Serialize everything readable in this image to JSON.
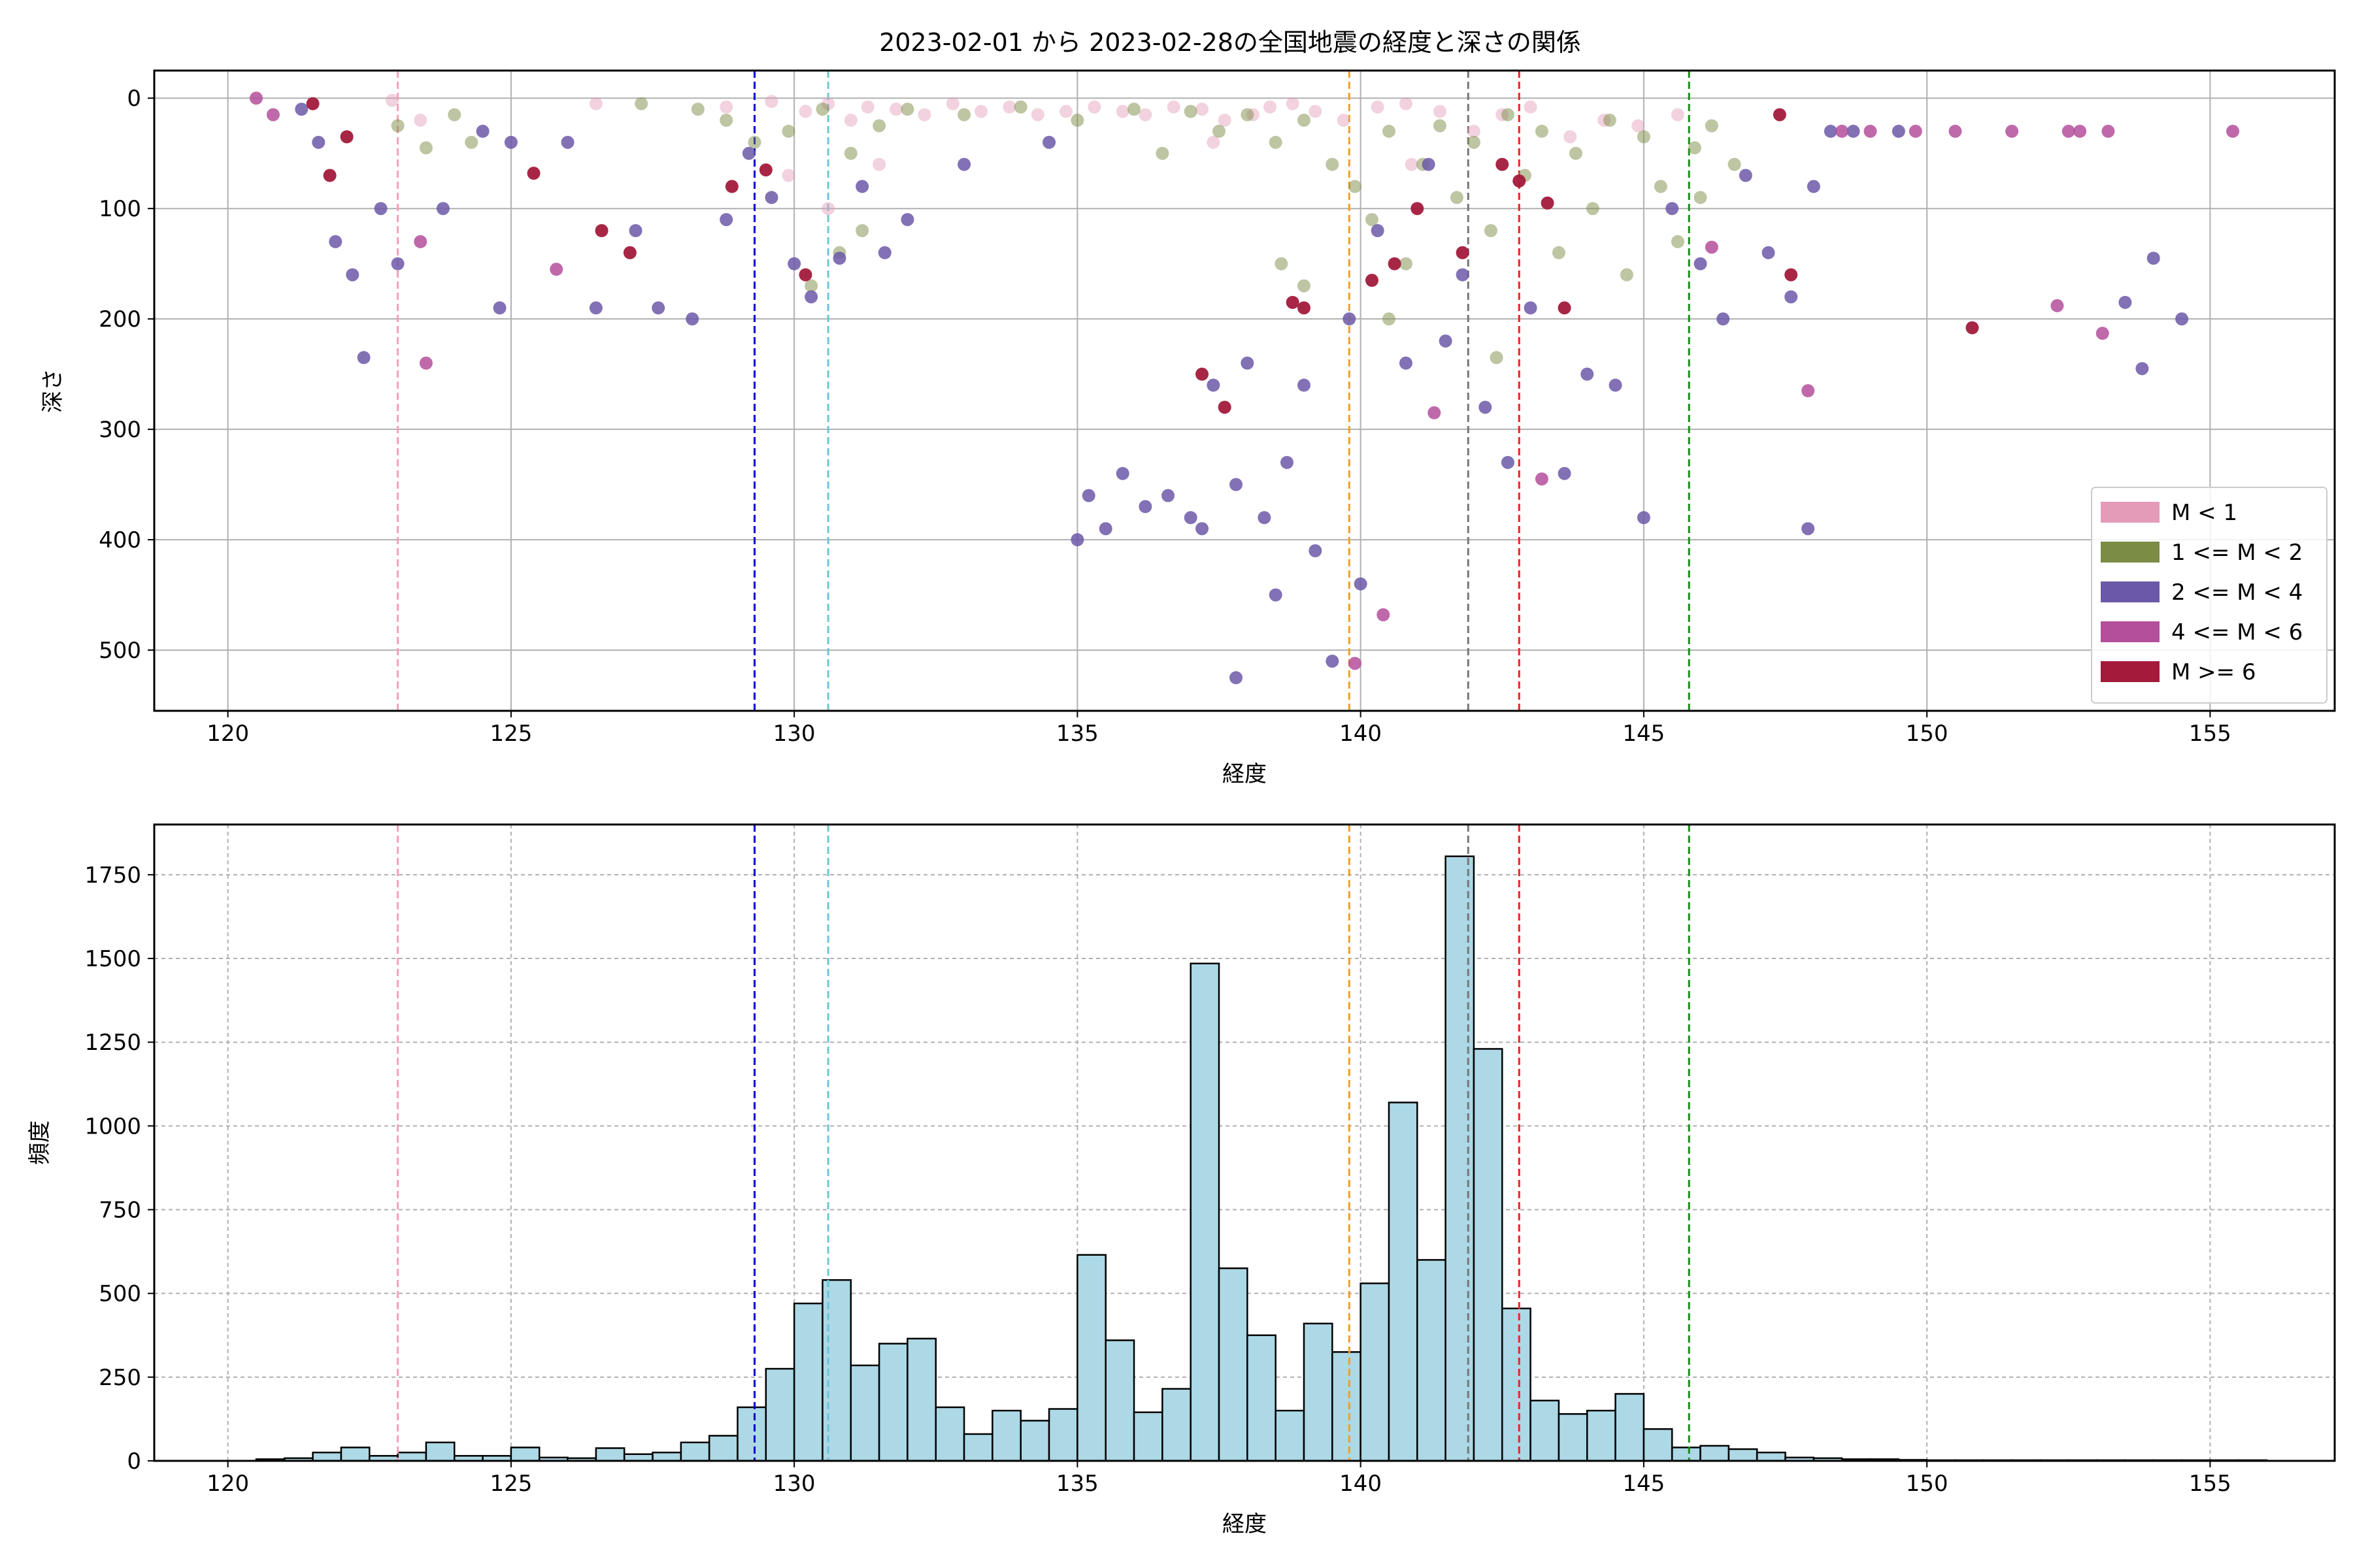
{
  "chart_data": [
    {
      "type": "scatter",
      "title": "2023-02-01 から 2023-02-28の全国地震の経度と深さの関係",
      "xlabel": "経度",
      "ylabel": "深さ",
      "xlim": [
        118.7,
        157.2
      ],
      "ylim": [
        555,
        -25
      ],
      "y_inverted": true,
      "xticks": [
        120,
        125,
        130,
        135,
        140,
        145,
        150,
        155
      ],
      "yticks": [
        0,
        100,
        200,
        300,
        400,
        500
      ],
      "grid": true,
      "legend_position": "lower-right",
      "series": [
        {
          "name": "M < 1",
          "color": "#e39bb8",
          "alpha": 0.45,
          "points": [
            [
              122.9,
              2
            ],
            [
              123.4,
              20
            ],
            [
              126.5,
              5
            ],
            [
              128.8,
              8
            ],
            [
              129.6,
              3
            ],
            [
              130.2,
              12
            ],
            [
              130.6,
              5
            ],
            [
              131.0,
              20
            ],
            [
              131.3,
              8
            ],
            [
              131.8,
              10
            ],
            [
              132.3,
              15
            ],
            [
              132.8,
              5
            ],
            [
              133.3,
              12
            ],
            [
              133.8,
              8
            ],
            [
              134.3,
              15
            ],
            [
              134.8,
              12
            ],
            [
              135.3,
              8
            ],
            [
              135.8,
              12
            ],
            [
              136.2,
              15
            ],
            [
              136.7,
              8
            ],
            [
              137.2,
              10
            ],
            [
              137.6,
              20
            ],
            [
              138.1,
              15
            ],
            [
              138.4,
              8
            ],
            [
              138.8,
              5
            ],
            [
              139.2,
              12
            ],
            [
              139.7,
              20
            ],
            [
              140.3,
              8
            ],
            [
              140.8,
              5
            ],
            [
              141.4,
              12
            ],
            [
              142.0,
              30
            ],
            [
              142.5,
              15
            ],
            [
              143.0,
              8
            ],
            [
              143.7,
              35
            ],
            [
              144.3,
              20
            ],
            [
              144.9,
              25
            ],
            [
              145.6,
              15
            ],
            [
              129.9,
              70
            ],
            [
              130.6,
              100
            ],
            [
              131.5,
              60
            ],
            [
              137.4,
              40
            ],
            [
              140.9,
              60
            ]
          ]
        },
        {
          "name": "1 <= M < 2",
          "color": "#7b8c45",
          "alpha": 0.5,
          "points": [
            [
              123.0,
              25
            ],
            [
              123.5,
              45
            ],
            [
              124.0,
              15
            ],
            [
              124.3,
              40
            ],
            [
              127.3,
              5
            ],
            [
              128.3,
              10
            ],
            [
              128.8,
              20
            ],
            [
              129.3,
              40
            ],
            [
              129.9,
              30
            ],
            [
              130.5,
              10
            ],
            [
              131.0,
              50
            ],
            [
              131.5,
              25
            ],
            [
              132.0,
              10
            ],
            [
              133.0,
              15
            ],
            [
              134.0,
              8
            ],
            [
              135.0,
              20
            ],
            [
              136.0,
              10
            ],
            [
              136.5,
              50
            ],
            [
              137.0,
              12
            ],
            [
              137.5,
              30
            ],
            [
              138.0,
              15
            ],
            [
              138.5,
              40
            ],
            [
              139.0,
              20
            ],
            [
              139.5,
              60
            ],
            [
              139.9,
              80
            ],
            [
              140.2,
              110
            ],
            [
              140.5,
              30
            ],
            [
              140.8,
              150
            ],
            [
              141.1,
              60
            ],
            [
              141.4,
              25
            ],
            [
              141.7,
              90
            ],
            [
              142.0,
              40
            ],
            [
              142.3,
              120
            ],
            [
              142.6,
              15
            ],
            [
              142.9,
              70
            ],
            [
              143.2,
              30
            ],
            [
              143.5,
              140
            ],
            [
              143.8,
              50
            ],
            [
              144.1,
              100
            ],
            [
              144.4,
              20
            ],
            [
              144.7,
              160
            ],
            [
              145.0,
              35
            ],
            [
              145.3,
              80
            ],
            [
              145.6,
              130
            ],
            [
              145.9,
              45
            ],
            [
              146.2,
              25
            ],
            [
              146.6,
              60
            ],
            [
              139.0,
              170
            ],
            [
              138.6,
              150
            ],
            [
              130.8,
              140
            ],
            [
              131.2,
              120
            ],
            [
              130.3,
              170
            ],
            [
              140.5,
              200
            ],
            [
              142.4,
              235
            ],
            [
              146.0,
              90
            ]
          ]
        },
        {
          "name": "2 <= M < 4",
          "color": "#6c58a8",
          "alpha": 0.85,
          "points": [
            [
              121.3,
              10
            ],
            [
              121.6,
              40
            ],
            [
              121.9,
              130
            ],
            [
              122.2,
              160
            ],
            [
              122.4,
              235
            ],
            [
              122.7,
              100
            ],
            [
              123.0,
              150
            ],
            [
              123.8,
              100
            ],
            [
              124.5,
              30
            ],
            [
              125.0,
              40
            ],
            [
              124.8,
              190
            ],
            [
              126.0,
              40
            ],
            [
              126.5,
              190
            ],
            [
              127.2,
              120
            ],
            [
              127.6,
              190
            ],
            [
              128.2,
              200
            ],
            [
              128.8,
              110
            ],
            [
              129.2,
              50
            ],
            [
              129.6,
              90
            ],
            [
              130.0,
              150
            ],
            [
              130.3,
              180
            ],
            [
              130.8,
              145
            ],
            [
              131.2,
              80
            ],
            [
              131.6,
              140
            ],
            [
              132.0,
              110
            ],
            [
              133.0,
              60
            ],
            [
              134.5,
              40
            ],
            [
              135.0,
              400
            ],
            [
              135.2,
              360
            ],
            [
              135.5,
              390
            ],
            [
              135.8,
              340
            ],
            [
              136.2,
              370
            ],
            [
              136.6,
              360
            ],
            [
              137.0,
              380
            ],
            [
              137.2,
              390
            ],
            [
              137.4,
              260
            ],
            [
              137.8,
              350
            ],
            [
              138.0,
              240
            ],
            [
              138.3,
              380
            ],
            [
              138.7,
              330
            ],
            [
              139.0,
              260
            ],
            [
              139.2,
              410
            ],
            [
              138.5,
              450
            ],
            [
              139.5,
              510
            ],
            [
              140.0,
              440
            ],
            [
              139.8,
              200
            ],
            [
              140.3,
              120
            ],
            [
              140.8,
              240
            ],
            [
              141.2,
              60
            ],
            [
              141.5,
              220
            ],
            [
              141.8,
              160
            ],
            [
              142.2,
              280
            ],
            [
              142.6,
              330
            ],
            [
              143.0,
              190
            ],
            [
              143.6,
              340
            ],
            [
              144.0,
              250
            ],
            [
              144.5,
              260
            ],
            [
              145.0,
              380
            ],
            [
              145.5,
              100
            ],
            [
              146.0,
              150
            ],
            [
              146.4,
              200
            ],
            [
              146.8,
              70
            ],
            [
              147.2,
              140
            ],
            [
              147.6,
              180
            ],
            [
              147.9,
              390
            ],
            [
              148.0,
              80
            ],
            [
              148.3,
              30
            ],
            [
              148.7,
              30
            ],
            [
              149.5,
              30
            ],
            [
              137.8,
              525
            ],
            [
              153.5,
              185
            ],
            [
              154.0,
              145
            ],
            [
              154.5,
              200
            ],
            [
              153.8,
              245
            ]
          ]
        },
        {
          "name": "4 <= M < 6",
          "color": "#b44f9c",
          "alpha": 0.85,
          "points": [
            [
              120.5,
              0
            ],
            [
              120.8,
              15
            ],
            [
              123.4,
              130
            ],
            [
              123.5,
              240
            ],
            [
              125.8,
              155
            ],
            [
              139.9,
              512
            ],
            [
              140.4,
              468
            ],
            [
              141.3,
              285
            ],
            [
              143.2,
              345
            ],
            [
              146.2,
              135
            ],
            [
              147.9,
              265
            ],
            [
              148.5,
              30
            ],
            [
              149.0,
              30
            ],
            [
              149.8,
              30
            ],
            [
              150.5,
              30
            ],
            [
              151.5,
              30
            ],
            [
              152.5,
              30
            ],
            [
              152.7,
              30
            ],
            [
              153.2,
              30
            ],
            [
              152.3,
              188
            ],
            [
              153.1,
              213
            ],
            [
              155.4,
              30
            ]
          ]
        },
        {
          "name": "M >= 6",
          "color": "#a31a3b",
          "alpha": 0.95,
          "points": [
            [
              121.5,
              5
            ],
            [
              121.8,
              70
            ],
            [
              122.1,
              35
            ],
            [
              125.4,
              68
            ],
            [
              126.6,
              120
            ],
            [
              127.1,
              140
            ],
            [
              128.9,
              80
            ],
            [
              129.5,
              65
            ],
            [
              130.2,
              160
            ],
            [
              137.2,
              250
            ],
            [
              137.6,
              280
            ],
            [
              138.8,
              185
            ],
            [
              139.0,
              190
            ],
            [
              140.2,
              165
            ],
            [
              140.6,
              150
            ],
            [
              141.0,
              100
            ],
            [
              141.8,
              140
            ],
            [
              142.5,
              60
            ],
            [
              142.8,
              75
            ],
            [
              143.3,
              95
            ],
            [
              143.6,
              190
            ],
            [
              147.4,
              15
            ],
            [
              147.6,
              160
            ],
            [
              150.8,
              208
            ]
          ]
        }
      ],
      "vlines": [
        {
          "x": 123.0,
          "color": "#f2a3b5"
        },
        {
          "x": 129.3,
          "color": "#0000cc"
        },
        {
          "x": 130.6,
          "color": "#6cc6d4"
        },
        {
          "x": 139.8,
          "color": "#f0a020"
        },
        {
          "x": 141.9,
          "color": "#777777"
        },
        {
          "x": 142.8,
          "color": "#ee2222"
        },
        {
          "x": 145.8,
          "color": "#1a8a1a"
        }
      ]
    },
    {
      "type": "bar",
      "xlabel": "経度",
      "ylabel": "頻度",
      "xlim": [
        118.7,
        157.2
      ],
      "ylim": [
        0,
        1900
      ],
      "xticks": [
        120,
        125,
        130,
        135,
        140,
        145,
        150,
        155
      ],
      "yticks": [
        0,
        250,
        500,
        750,
        1000,
        1250,
        1500,
        1750
      ],
      "grid": true,
      "bar_color": "#add8e6",
      "bin_start": 120.5,
      "bin_width": 0.5,
      "values": [
        5,
        8,
        25,
        40,
        15,
        25,
        55,
        15,
        15,
        40,
        10,
        8,
        38,
        20,
        25,
        55,
        75,
        160,
        275,
        470,
        540,
        285,
        350,
        365,
        160,
        80,
        150,
        120,
        155,
        615,
        360,
        145,
        215,
        1485,
        575,
        375,
        150,
        410,
        325,
        530,
        1070,
        600,
        1805,
        1230,
        455,
        180,
        140,
        150,
        200,
        95,
        40,
        45,
        35,
        25,
        10,
        8,
        5,
        5,
        3,
        2,
        2,
        2,
        2,
        2,
        2,
        2,
        2,
        2,
        2,
        2,
        2
      ]
    }
  ]
}
